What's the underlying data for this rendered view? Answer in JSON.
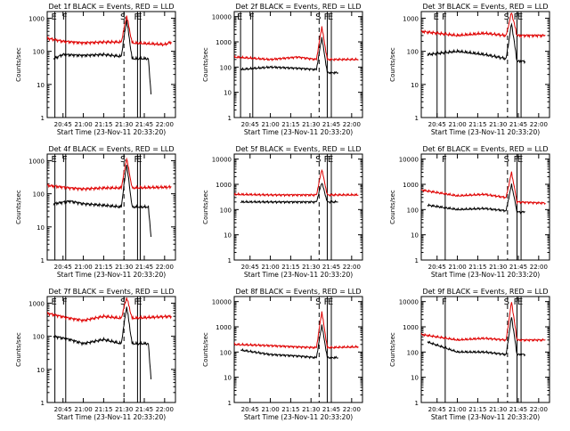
{
  "chart_data": [
    {
      "type": "line",
      "title": "Det 1f BLACK = Events, RED = LLD",
      "xlabel": "Start Time (23-Nov-11 20:33:20)",
      "ylabel": "Counts/sec",
      "x_ticks": [
        "20:45",
        "21:00",
        "21:15",
        "21:30",
        "21:45",
        "22:00"
      ],
      "y_ticks": [
        "1",
        "10",
        "100",
        "1000"
      ],
      "markers": [
        {
          "label": "E",
          "x": "20:39",
          "style": "solid"
        },
        {
          "label": "F",
          "x": "20:47",
          "style": "solid"
        },
        {
          "label": "S",
          "x": "21:30",
          "style": "dashed"
        },
        {
          "label": "F",
          "x": "21:40",
          "style": "solid"
        },
        {
          "label": "E",
          "x": "21:42",
          "style": "solid"
        }
      ],
      "series": [
        {
          "name": "Events",
          "color": "#000000",
          "points": [
            [
              "20:38",
              60
            ],
            [
              "20:45",
              80
            ],
            [
              "21:00",
              75
            ],
            [
              "21:15",
              80
            ],
            [
              "21:28",
              70
            ],
            [
              "21:32",
              900
            ],
            [
              "21:36",
              60
            ],
            [
              "21:48",
              60
            ],
            [
              "21:50",
              5
            ]
          ]
        },
        {
          "name": "LLD",
          "color": "#e00000",
          "points": [
            [
              "20:33",
              250
            ],
            [
              "20:45",
              200
            ],
            [
              "21:00",
              180
            ],
            [
              "21:15",
              190
            ],
            [
              "21:28",
              190
            ],
            [
              "21:32",
              1200
            ],
            [
              "21:36",
              180
            ],
            [
              "22:00",
              160
            ],
            [
              "22:05",
              190
            ]
          ]
        }
      ]
    },
    {
      "type": "line",
      "title": "Det 2f BLACK = Events, RED = LLD",
      "xlabel": "Start Time (23-Nov-11 20:33:20)",
      "ylabel": "Counts/sec",
      "x_ticks": [
        "20:45",
        "21:00",
        "21:15",
        "21:30",
        "21:45",
        "22:00"
      ],
      "y_ticks": [
        "1",
        "10",
        "100",
        "1000",
        "10000"
      ],
      "markers": [
        {
          "label": "E",
          "x": "20:38",
          "style": "solid"
        },
        {
          "label": "F",
          "x": "20:47",
          "style": "solid"
        },
        {
          "label": "S",
          "x": "21:36",
          "style": "dashed"
        },
        {
          "label": "F",
          "x": "21:42",
          "style": "solid"
        },
        {
          "label": "E",
          "x": "21:45",
          "style": "solid"
        }
      ],
      "series": [
        {
          "name": "Events",
          "color": "#000000",
          "points": [
            [
              "20:38",
              80
            ],
            [
              "21:00",
              100
            ],
            [
              "21:20",
              90
            ],
            [
              "21:34",
              80
            ],
            [
              "21:38",
              1500
            ],
            [
              "21:42",
              60
            ],
            [
              "21:50",
              60
            ]
          ]
        },
        {
          "name": "LLD",
          "color": "#e00000",
          "points": [
            [
              "20:33",
              250
            ],
            [
              "21:00",
              200
            ],
            [
              "21:20",
              250
            ],
            [
              "21:34",
              200
            ],
            [
              "21:38",
              4000
            ],
            [
              "21:42",
              200
            ],
            [
              "22:05",
              200
            ]
          ]
        }
      ]
    },
    {
      "type": "line",
      "title": "Det 3f BLACK = Events, RED = LLD",
      "xlabel": "Start Time (23-Nov-11 20:33:20)",
      "ylabel": "Counts/sec",
      "x_ticks": [
        "20:45",
        "21:00",
        "21:15",
        "21:30",
        "21:45",
        "22:00"
      ],
      "y_ticks": [
        "1",
        "10",
        "100",
        "1000"
      ],
      "markers": [
        {
          "label": "E",
          "x": "20:45",
          "style": "solid"
        },
        {
          "label": "F",
          "x": "20:51",
          "style": "solid"
        },
        {
          "label": "S",
          "x": "21:37",
          "style": "dashed"
        },
        {
          "label": "F",
          "x": "21:44",
          "style": "solid"
        },
        {
          "label": "E",
          "x": "21:47",
          "style": "solid"
        }
      ],
      "series": [
        {
          "name": "Events",
          "color": "#000000",
          "points": [
            [
              "20:38",
              80
            ],
            [
              "21:00",
              100
            ],
            [
              "21:20",
              80
            ],
            [
              "21:36",
              60
            ],
            [
              "21:40",
              700
            ],
            [
              "21:44",
              50
            ],
            [
              "21:50",
              50
            ]
          ]
        },
        {
          "name": "LLD",
          "color": "#e00000",
          "points": [
            [
              "20:33",
              400
            ],
            [
              "21:00",
              300
            ],
            [
              "21:20",
              350
            ],
            [
              "21:36",
              300
            ],
            [
              "21:40",
              1500
            ],
            [
              "21:44",
              300
            ],
            [
              "22:05",
              300
            ]
          ]
        }
      ]
    },
    {
      "type": "line",
      "title": "Det 4f BLACK = Events, RED = LLD",
      "xlabel": "Start Time (23-Nov-11 20:33:20)",
      "ylabel": "Counts/sec",
      "x_ticks": [
        "20:45",
        "21:00",
        "21:15",
        "21:30",
        "21:45",
        "22:00"
      ],
      "y_ticks": [
        "1",
        "10",
        "100",
        "1000"
      ],
      "markers": [
        {
          "label": "E",
          "x": "20:39",
          "style": "solid"
        },
        {
          "label": "F",
          "x": "20:47",
          "style": "solid"
        },
        {
          "label": "S",
          "x": "21:30",
          "style": "dashed"
        },
        {
          "label": "F",
          "x": "21:40",
          "style": "solid"
        },
        {
          "label": "E",
          "x": "21:42",
          "style": "solid"
        }
      ],
      "series": [
        {
          "name": "Events",
          "color": "#000000",
          "points": [
            [
              "20:38",
              50
            ],
            [
              "20:50",
              60
            ],
            [
              "21:00",
              50
            ],
            [
              "21:15",
              45
            ],
            [
              "21:28",
              40
            ],
            [
              "21:32",
              800
            ],
            [
              "21:36",
              40
            ],
            [
              "21:48",
              40
            ],
            [
              "21:50",
              5
            ]
          ]
        },
        {
          "name": "LLD",
          "color": "#e00000",
          "points": [
            [
              "20:33",
              180
            ],
            [
              "20:50",
              150
            ],
            [
              "21:00",
              140
            ],
            [
              "21:15",
              150
            ],
            [
              "21:28",
              150
            ],
            [
              "21:32",
              1200
            ],
            [
              "21:36",
              150
            ],
            [
              "22:05",
              160
            ]
          ]
        }
      ]
    },
    {
      "type": "line",
      "title": "Det 5f BLACK = Events, RED = LLD",
      "xlabel": "Start Time (23-Nov-11 20:33:20)",
      "ylabel": "Counts/sec",
      "x_ticks": [
        "20:45",
        "21:00",
        "21:15",
        "21:30",
        "21:45",
        "22:00"
      ],
      "y_ticks": [
        "1",
        "10",
        "100",
        "1000",
        "10000"
      ],
      "markers": [
        {
          "label": "S",
          "x": "21:36",
          "style": "dashed"
        },
        {
          "label": "F",
          "x": "21:42",
          "style": "solid"
        },
        {
          "label": "E",
          "x": "21:45",
          "style": "solid"
        }
      ],
      "series": [
        {
          "name": "Events",
          "color": "#000000",
          "points": [
            [
              "20:38",
              200
            ],
            [
              "21:00",
              200
            ],
            [
              "21:20",
              200
            ],
            [
              "21:34",
              200
            ],
            [
              "21:38",
              1200
            ],
            [
              "21:42",
              200
            ],
            [
              "21:50",
              200
            ]
          ]
        },
        {
          "name": "LLD",
          "color": "#e00000",
          "points": [
            [
              "20:33",
              400
            ],
            [
              "21:00",
              380
            ],
            [
              "21:20",
              380
            ],
            [
              "21:34",
              380
            ],
            [
              "21:38",
              4000
            ],
            [
              "21:42",
              380
            ],
            [
              "22:05",
              380
            ]
          ]
        }
      ]
    },
    {
      "type": "line",
      "title": "Det 6f BLACK = Events, RED = LLD",
      "xlabel": "Start Time (23-Nov-11 20:33:20)",
      "ylabel": "Counts/sec",
      "x_ticks": [
        "20:45",
        "21:00",
        "21:15",
        "21:30",
        "21:45",
        "22:00"
      ],
      "y_ticks": [
        "1",
        "10",
        "100",
        "1000",
        "10000"
      ],
      "markers": [
        {
          "label": "F",
          "x": "20:51",
          "style": "solid"
        },
        {
          "label": "S",
          "x": "21:37",
          "style": "dashed"
        },
        {
          "label": "F",
          "x": "21:44",
          "style": "solid"
        },
        {
          "label": "E",
          "x": "21:47",
          "style": "solid"
        }
      ],
      "series": [
        {
          "name": "Events",
          "color": "#000000",
          "points": [
            [
              "20:38",
              150
            ],
            [
              "21:00",
              100
            ],
            [
              "21:20",
              110
            ],
            [
              "21:36",
              90
            ],
            [
              "21:40",
              1000
            ],
            [
              "21:44",
              80
            ],
            [
              "21:50",
              80
            ]
          ]
        },
        {
          "name": "LLD",
          "color": "#e00000",
          "points": [
            [
              "20:33",
              600
            ],
            [
              "21:00",
              350
            ],
            [
              "21:20",
              400
            ],
            [
              "21:36",
              300
            ],
            [
              "21:40",
              3000
            ],
            [
              "21:44",
              200
            ],
            [
              "22:05",
              180
            ]
          ]
        }
      ]
    },
    {
      "type": "line",
      "title": "Det 7f BLACK = Events, RED = LLD",
      "xlabel": "Start Time (23-Nov-11 20:33:20)",
      "ylabel": "Counts/sec",
      "x_ticks": [
        "20:45",
        "21:00",
        "21:15",
        "21:30",
        "21:45",
        "22:00"
      ],
      "y_ticks": [
        "1",
        "10",
        "100",
        "1000"
      ],
      "markers": [
        {
          "label": "E",
          "x": "20:39",
          "style": "solid"
        },
        {
          "label": "F",
          "x": "20:47",
          "style": "solid"
        },
        {
          "label": "S",
          "x": "21:30",
          "style": "dashed"
        },
        {
          "label": "F",
          "x": "21:40",
          "style": "solid"
        },
        {
          "label": "E",
          "x": "21:42",
          "style": "solid"
        }
      ],
      "series": [
        {
          "name": "Events",
          "color": "#000000",
          "points": [
            [
              "20:38",
              100
            ],
            [
              "20:50",
              80
            ],
            [
              "21:00",
              60
            ],
            [
              "21:15",
              80
            ],
            [
              "21:28",
              60
            ],
            [
              "21:32",
              800
            ],
            [
              "21:36",
              60
            ],
            [
              "21:48",
              60
            ],
            [
              "21:50",
              5
            ]
          ]
        },
        {
          "name": "LLD",
          "color": "#e00000",
          "points": [
            [
              "20:33",
              500
            ],
            [
              "20:50",
              350
            ],
            [
              "21:00",
              300
            ],
            [
              "21:15",
              400
            ],
            [
              "21:28",
              350
            ],
            [
              "21:32",
              1500
            ],
            [
              "21:36",
              350
            ],
            [
              "22:05",
              400
            ]
          ]
        }
      ]
    },
    {
      "type": "line",
      "title": "Det 8f BLACK = Events, RED = LLD",
      "xlabel": "Start Time (23-Nov-11 20:33:20)",
      "ylabel": "Counts/sec",
      "x_ticks": [
        "20:45",
        "21:00",
        "21:15",
        "21:30",
        "21:45",
        "22:00"
      ],
      "y_ticks": [
        "1",
        "10",
        "100",
        "1000",
        "10000"
      ],
      "markers": [
        {
          "label": "S",
          "x": "21:36",
          "style": "dashed"
        },
        {
          "label": "F",
          "x": "21:42",
          "style": "solid"
        },
        {
          "label": "E",
          "x": "21:45",
          "style": "solid"
        }
      ],
      "series": [
        {
          "name": "Events",
          "color": "#000000",
          "points": [
            [
              "20:38",
              120
            ],
            [
              "21:00",
              80
            ],
            [
              "21:20",
              70
            ],
            [
              "21:34",
              60
            ],
            [
              "21:38",
              1200
            ],
            [
              "21:42",
              60
            ],
            [
              "21:50",
              60
            ]
          ]
        },
        {
          "name": "LLD",
          "color": "#e00000",
          "points": [
            [
              "20:33",
              200
            ],
            [
              "21:00",
              180
            ],
            [
              "21:20",
              160
            ],
            [
              "21:34",
              150
            ],
            [
              "21:38",
              4000
            ],
            [
              "21:42",
              150
            ],
            [
              "22:05",
              160
            ]
          ]
        }
      ]
    },
    {
      "type": "line",
      "title": "Det 9f BLACK = Events, RED = LLD",
      "xlabel": "Start Time (23-Nov-11 20:33:20)",
      "ylabel": "Counts/sec",
      "x_ticks": [
        "20:45",
        "21:00",
        "21:15",
        "21:30",
        "21:45",
        "22:00"
      ],
      "y_ticks": [
        "1",
        "10",
        "100",
        "1000",
        "10000"
      ],
      "markers": [
        {
          "label": "F",
          "x": "20:51",
          "style": "solid"
        },
        {
          "label": "S",
          "x": "21:37",
          "style": "dashed"
        },
        {
          "label": "F",
          "x": "21:44",
          "style": "solid"
        },
        {
          "label": "E",
          "x": "21:47",
          "style": "solid"
        }
      ],
      "series": [
        {
          "name": "Events",
          "color": "#000000",
          "points": [
            [
              "20:38",
              250
            ],
            [
              "21:00",
              100
            ],
            [
              "21:20",
              100
            ],
            [
              "21:36",
              80
            ],
            [
              "21:40",
              2500
            ],
            [
              "21:44",
              80
            ],
            [
              "21:50",
              80
            ]
          ]
        },
        {
          "name": "LLD",
          "color": "#e00000",
          "points": [
            [
              "20:33",
              500
            ],
            [
              "21:00",
              300
            ],
            [
              "21:20",
              350
            ],
            [
              "21:36",
              300
            ],
            [
              "21:40",
              10000
            ],
            [
              "21:44",
              300
            ],
            [
              "22:05",
              300
            ]
          ]
        }
      ]
    }
  ]
}
